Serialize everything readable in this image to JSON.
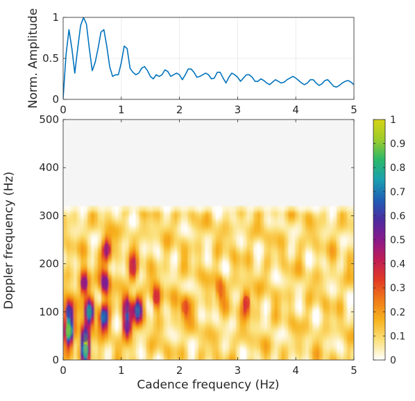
{
  "chart_data": [
    {
      "type": "line",
      "title": "",
      "xlabel": "",
      "ylabel": "Norm. Amplitude",
      "xlim": [
        0,
        5
      ],
      "ylim": [
        0,
        1
      ],
      "grid": true,
      "x_ticks": [
        "0",
        "1",
        "2",
        "3",
        "4",
        "5"
      ],
      "y_ticks": [
        "0",
        "0.5",
        "1"
      ],
      "line_color": "#0072bd",
      "series": [
        {
          "x": [
            0,
            0.05,
            0.1,
            0.15,
            0.2,
            0.25,
            0.3,
            0.35,
            0.4,
            0.45,
            0.5,
            0.55,
            0.6,
            0.65,
            0.7,
            0.75,
            0.8,
            0.85,
            0.9,
            0.95,
            1.0,
            1.05,
            1.1,
            1.15,
            1.2,
            1.25,
            1.3,
            1.35,
            1.4,
            1.45,
            1.5,
            1.55,
            1.6,
            1.65,
            1.7,
            1.75,
            1.8,
            1.85,
            1.9,
            1.95,
            2.0,
            2.05,
            2.1,
            2.15,
            2.2,
            2.25,
            2.3,
            2.35,
            2.4,
            2.45,
            2.5,
            2.55,
            2.6,
            2.65,
            2.7,
            2.75,
            2.8,
            2.85,
            2.9,
            2.95,
            3.0,
            3.05,
            3.1,
            3.15,
            3.2,
            3.25,
            3.3,
            3.35,
            3.4,
            3.45,
            3.5,
            3.55,
            3.6,
            3.65,
            3.7,
            3.75,
            3.8,
            3.85,
            3.9,
            3.95,
            4.0,
            4.05,
            4.1,
            4.15,
            4.2,
            4.25,
            4.3,
            4.35,
            4.4,
            4.45,
            4.5,
            4.55,
            4.6,
            4.65,
            4.7,
            4.75,
            4.8,
            4.85,
            4.9,
            4.95,
            5.0
          ],
          "y": [
            0.02,
            0.55,
            0.85,
            0.62,
            0.32,
            0.62,
            0.9,
            1.0,
            0.92,
            0.62,
            0.35,
            0.45,
            0.62,
            0.82,
            0.85,
            0.65,
            0.4,
            0.28,
            0.3,
            0.3,
            0.45,
            0.65,
            0.62,
            0.38,
            0.33,
            0.3,
            0.32,
            0.38,
            0.4,
            0.35,
            0.28,
            0.25,
            0.3,
            0.28,
            0.3,
            0.36,
            0.34,
            0.28,
            0.3,
            0.32,
            0.3,
            0.24,
            0.3,
            0.37,
            0.37,
            0.33,
            0.27,
            0.28,
            0.3,
            0.32,
            0.3,
            0.25,
            0.26,
            0.33,
            0.33,
            0.26,
            0.2,
            0.27,
            0.32,
            0.3,
            0.27,
            0.22,
            0.26,
            0.3,
            0.3,
            0.27,
            0.22,
            0.22,
            0.25,
            0.23,
            0.2,
            0.18,
            0.21,
            0.24,
            0.22,
            0.2,
            0.21,
            0.24,
            0.26,
            0.28,
            0.26,
            0.23,
            0.2,
            0.18,
            0.2,
            0.24,
            0.24,
            0.2,
            0.17,
            0.19,
            0.23,
            0.24,
            0.2,
            0.16,
            0.15,
            0.17,
            0.2,
            0.22,
            0.23,
            0.21,
            0.18
          ]
        }
      ]
    },
    {
      "type": "heatmap",
      "title": "",
      "xlabel": "Cadence frequency (Hz)",
      "ylabel": "Doppler frequency (Hz)",
      "xlim": [
        0,
        5
      ],
      "ylim": [
        0,
        500
      ],
      "x_ticks": [
        "0",
        "1",
        "2",
        "3",
        "4",
        "5"
      ],
      "y_ticks": [
        "0",
        "100",
        "200",
        "300",
        "400",
        "500"
      ],
      "colormap": "white-yellow-orange-red-purple-blue-green",
      "data_upper_doppler_limit": 320,
      "colorbar": {
        "range": [
          0,
          1
        ],
        "ticks": [
          "0",
          "0.1",
          "0.2",
          "0.3",
          "0.4",
          "0.5",
          "0.6",
          "0.7",
          "0.8",
          "0.9",
          "1"
        ],
        "colors": [
          "#ffffff",
          "#fbe07a",
          "#f7b21e",
          "#f07b17",
          "#e23a26",
          "#c01d55",
          "#8a1a8c",
          "#4b2ca0",
          "#1f5fb5",
          "#1aa0b0",
          "#2bb86a",
          "#9ccc2a",
          "#d6d415"
        ]
      },
      "peaks": [
        {
          "x": 0.1,
          "y": 60,
          "value": 0.85
        },
        {
          "x": 0.1,
          "y": 100,
          "value": 0.6
        },
        {
          "x": 0.38,
          "y": 20,
          "value": 0.75
        },
        {
          "x": 0.38,
          "y": 50,
          "value": 0.55
        },
        {
          "x": 0.36,
          "y": 160,
          "value": 0.5
        },
        {
          "x": 0.45,
          "y": 100,
          "value": 0.7
        },
        {
          "x": 0.7,
          "y": 90,
          "value": 0.68
        },
        {
          "x": 0.72,
          "y": 160,
          "value": 0.5
        },
        {
          "x": 0.75,
          "y": 230,
          "value": 0.45
        },
        {
          "x": 1.1,
          "y": 70,
          "value": 0.5
        },
        {
          "x": 1.1,
          "y": 110,
          "value": 0.45
        },
        {
          "x": 1.28,
          "y": 105,
          "value": 0.62
        },
        {
          "x": 1.2,
          "y": 190,
          "value": 0.35
        },
        {
          "x": 1.6,
          "y": 130,
          "value": 0.35
        },
        {
          "x": 2.1,
          "y": 110,
          "value": 0.3
        },
        {
          "x": 3.15,
          "y": 120,
          "value": 0.35
        },
        {
          "x": 2.7,
          "y": 150,
          "value": 0.25
        }
      ]
    }
  ]
}
